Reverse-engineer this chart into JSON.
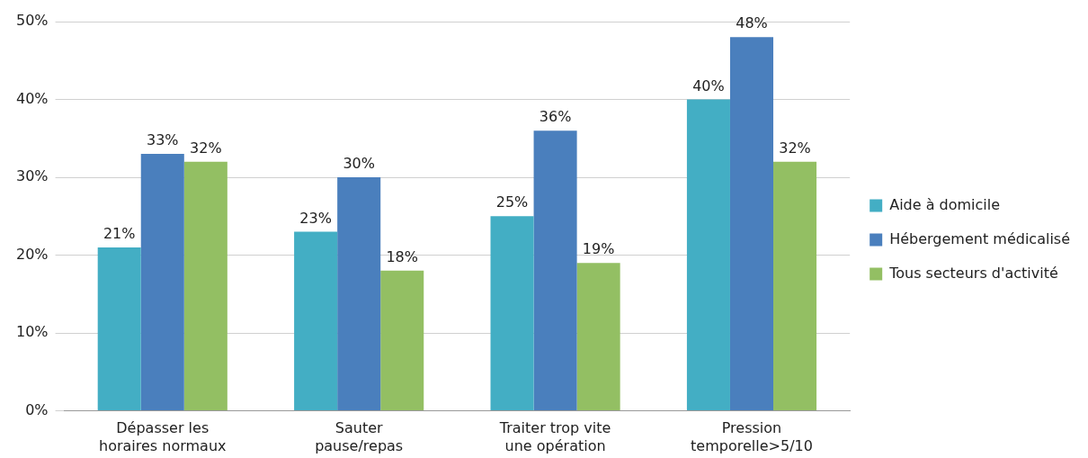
{
  "chart_data": {
    "type": "bar",
    "categories": [
      "Dépasser les horaires normaux",
      "Sauter pause/repas",
      "Traiter trop vite une opération",
      "Pression temporelle>5/10"
    ],
    "series": [
      {
        "name": "Aide à domicile",
        "color": "#43aec4",
        "values": [
          21,
          23,
          25,
          40
        ],
        "value_labels": [
          "21%",
          "23%",
          "25%",
          "40%"
        ]
      },
      {
        "name": "Hébergement médicalisé",
        "color": "#4a7fbd",
        "values": [
          33,
          30,
          36,
          48
        ],
        "value_labels": [
          "33%",
          "30%",
          "36%",
          "48%"
        ]
      },
      {
        "name": "Tous secteurs d'activité",
        "color": "#93bf63",
        "values": [
          32,
          18,
          19,
          32
        ],
        "value_labels": [
          "32%",
          "18%",
          "19%",
          "32%"
        ]
      }
    ],
    "ylim": [
      0,
      50
    ],
    "yticks": [
      {
        "value": 0,
        "label": "0%"
      },
      {
        "value": 10,
        "label": "10%"
      },
      {
        "value": 20,
        "label": "20%"
      },
      {
        "value": 30,
        "label": "30%"
      },
      {
        "value": 40,
        "label": "40%"
      },
      {
        "value": 50,
        "label": "50%"
      }
    ],
    "grid": "y",
    "legend": "right"
  }
}
